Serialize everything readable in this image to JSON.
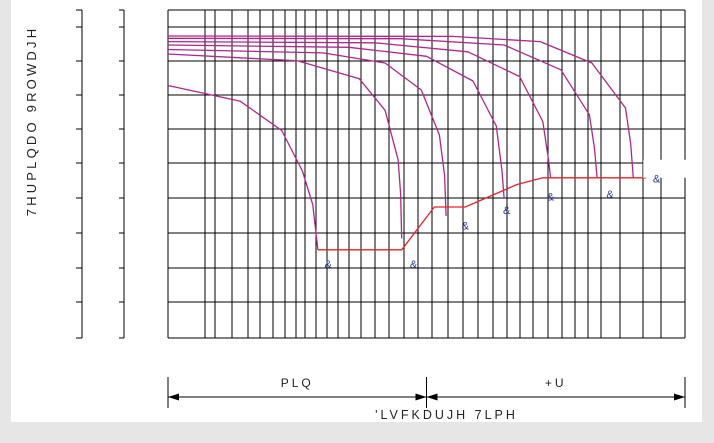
{
  "chart_data": {
    "type": "line",
    "title": "",
    "ylabel": "7HUPLQDO 9ROWDJH",
    "xlabel": "'LVFKDUJH 7LPH",
    "x_segments": [
      {
        "label": "PLQ",
        "x_range": [
          0,
          50
        ]
      },
      {
        "label": "+U",
        "x_range": [
          50,
          100
        ]
      }
    ],
    "xlim": [
      0,
      100
    ],
    "ylim": [
      0,
      100
    ],
    "grid": true,
    "legend": "none",
    "colors": {
      "curve": "#b0268c",
      "cutoff": "#e8222a",
      "marker": "#2b3a8f",
      "grid": "#000000",
      "background": "#ffffff"
    },
    "series": [
      {
        "values": [
          [
            0,
            78
          ],
          [
            14,
            71
          ],
          [
            22,
            58
          ],
          [
            26,
            40
          ],
          [
            28,
            25
          ],
          [
            29,
            5
          ]
        ],
        "label": "&"
      },
      {
        "values": [
          [
            0,
            92
          ],
          [
            25,
            89
          ],
          [
            37,
            81
          ],
          [
            42,
            67
          ],
          [
            44.5,
            45
          ],
          [
            45,
            30
          ],
          [
            45.2,
            10
          ]
        ],
        "label": "&"
      },
      {
        "values": [
          [
            0,
            94
          ],
          [
            30,
            92.5
          ],
          [
            42,
            88
          ],
          [
            49,
            76
          ],
          [
            52.5,
            56
          ],
          [
            53.5,
            38
          ],
          [
            53.8,
            20
          ]
        ],
        "label": "&"
      },
      {
        "values": [
          [
            0,
            96
          ],
          [
            35,
            95
          ],
          [
            50,
            91
          ],
          [
            59,
            80
          ],
          [
            63.5,
            60
          ],
          [
            64.6,
            40
          ],
          [
            65,
            28
          ]
        ],
        "label": "&"
      },
      {
        "values": [
          [
            0,
            97.5
          ],
          [
            40,
            97
          ],
          [
            58,
            93
          ],
          [
            68,
            82
          ],
          [
            72.5,
            62
          ],
          [
            73.6,
            45
          ],
          [
            74,
            37
          ]
        ],
        "label": "&"
      },
      {
        "values": [
          [
            0,
            99
          ],
          [
            45,
            98.8
          ],
          [
            65,
            96
          ],
          [
            76,
            85
          ],
          [
            81.5,
            65
          ],
          [
            82.5,
            50
          ],
          [
            83,
            37
          ]
        ],
        "label": "&"
      },
      {
        "values": [
          [
            0,
            100
          ],
          [
            55,
            99.8
          ],
          [
            72,
            97.5
          ],
          [
            82,
            88
          ],
          [
            88.5,
            68
          ],
          [
            89.5,
            52
          ],
          [
            90,
            37
          ]
        ],
        "label": "&"
      }
    ],
    "cutoff_line": [
      [
        29,
        5
      ],
      [
        45.2,
        5
      ],
      [
        51.5,
        24
      ],
      [
        57.5,
        24
      ],
      [
        67.5,
        34
      ],
      [
        72.5,
        37
      ],
      [
        92.5,
        37
      ]
    ],
    "markers": [
      {
        "x": 31,
        "y": -3,
        "label": "&"
      },
      {
        "x": 47.5,
        "y": -3,
        "label": "&"
      },
      {
        "x": 57.5,
        "y": 14,
        "label": "&"
      },
      {
        "x": 65.5,
        "y": 21,
        "label": "&"
      },
      {
        "x": 74,
        "y": 27,
        "label": "&"
      },
      {
        "x": 85.5,
        "y": 28,
        "label": "&"
      },
      {
        "x": 94.5,
        "y": 35,
        "label": "&"
      }
    ]
  }
}
